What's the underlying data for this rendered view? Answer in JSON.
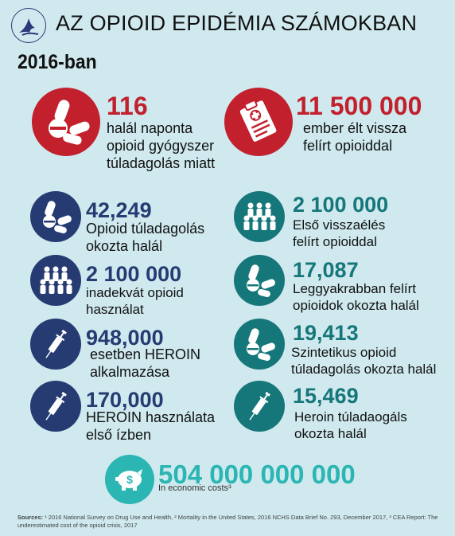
{
  "header": {
    "title": "AZ OPIOID EPIDÉMIA SZÁMOKBAN",
    "logo_icon": "hhs-eagle-icon"
  },
  "year_label": "2016-ban",
  "top_stats": [
    {
      "value": "116",
      "lines": [
        "halál naponta",
        "opioid gyógyszer",
        "túladagolás miatt"
      ],
      "icon": "pills-icon",
      "color": "#c2202d"
    },
    {
      "value": "11 500 000",
      "lines": [
        "ember élt vissza",
        "felírt opioiddal"
      ],
      "icon": "prescription-clipboard-icon",
      "color": "#c2202d"
    }
  ],
  "left_stats": [
    {
      "value": "42,249",
      "lines": [
        "Opioid túladagolás",
        "okozta halál"
      ],
      "icon": "pills-icon"
    },
    {
      "value": "2 100 000",
      "lines": [
        "inadekvát opioid",
        "használat"
      ],
      "icon": "people-group-icon"
    },
    {
      "value": "948,000",
      "lines": [
        "esetben HEROIN",
        "alkalmazása"
      ],
      "icon": "syringe-icon"
    },
    {
      "value": "170,000",
      "lines": [
        "HEROIN használata",
        "első ízben"
      ],
      "icon": "syringe-icon"
    }
  ],
  "right_stats": [
    {
      "value": "2 100 000",
      "lines": [
        "Első visszaélés",
        "felírt opioiddal"
      ],
      "icon": "people-group-icon"
    },
    {
      "value": "17,087",
      "lines": [
        "Leggyakrabban felírt",
        "opioidok okozta halál"
      ],
      "icon": "pills-icon"
    },
    {
      "value": "19,413",
      "lines": [
        "Szintetikus opioid",
        "túladagolás okozta halál"
      ],
      "icon": "pills-icon"
    },
    {
      "value": "15,469",
      "lines": [
        "Heroin túladaogáls",
        "okozta halál"
      ],
      "icon": "syringe-icon"
    }
  ],
  "economic": {
    "value": "504 000 000 000",
    "label": "In economic costs³",
    "icon": "piggy-bank-dollar-icon"
  },
  "sources": {
    "label": "Sources:",
    "text": " ¹ 2016 National Survey on Drug Use and Health, ² Mortality in the United States, 2016 NCHS Data Brief No. 293, December 2017, ³ CEA Report: The underestimated cost of the opioid crisis, 2017"
  },
  "colors": {
    "background": "#cfe9ee",
    "red": "#c2202d",
    "navy": "#263b72",
    "teal": "#16777a",
    "light_teal": "#2bb5b3"
  }
}
